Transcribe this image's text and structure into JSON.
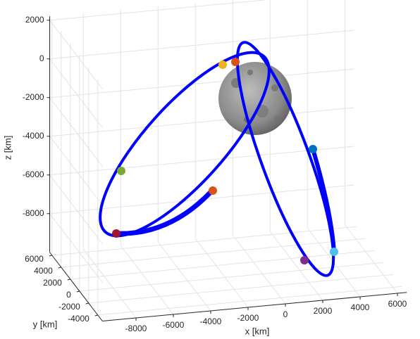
{
  "chart_data": {
    "type": "line3d",
    "xlabel": "x [km]",
    "ylabel": "y [km]",
    "zlabel": "z [km]",
    "xlim": [
      -9800,
      6500
    ],
    "ylim": [
      -5000,
      6500
    ],
    "zlim": [
      -10000,
      2200
    ],
    "xticks": [
      -8000,
      -6000,
      -4000,
      -2000,
      0,
      2000,
      4000,
      6000
    ],
    "yticks": [
      -4000,
      -2000,
      0,
      2000,
      4000,
      6000
    ],
    "zticks": [
      -8000,
      -6000,
      -4000,
      -2000,
      0,
      2000
    ],
    "grid": true
  }
}
